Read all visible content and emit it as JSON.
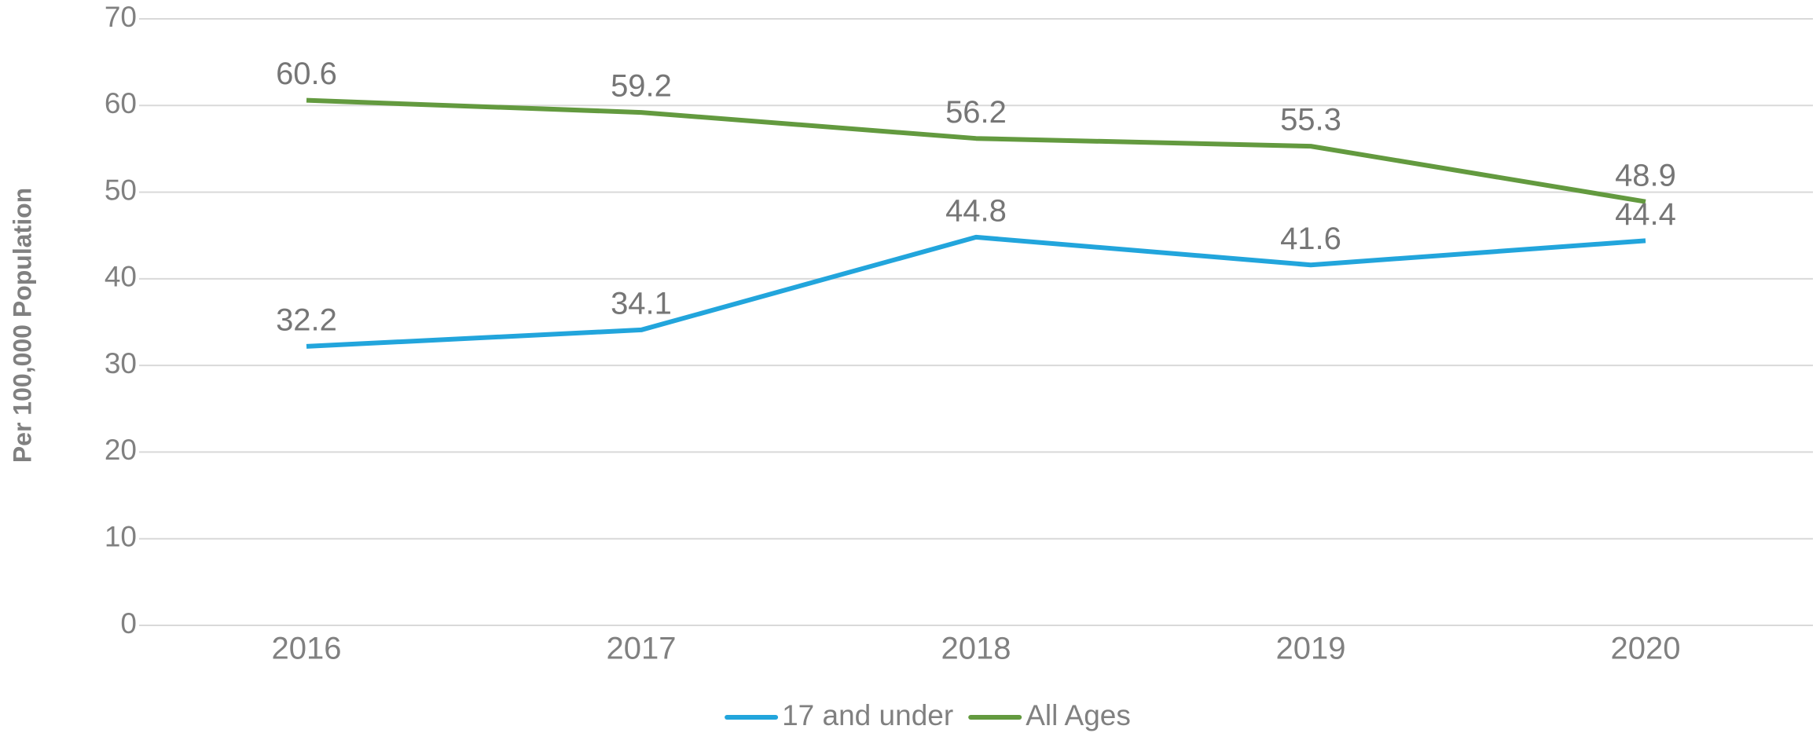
{
  "chart_data": {
    "type": "line",
    "ylabel": "Per 100,000 Population",
    "categories": [
      "2016",
      "2017",
      "2018",
      "2019",
      "2020"
    ],
    "series": [
      {
        "name": "17 and under",
        "color": "#22a5dc",
        "values": [
          32.2,
          34.1,
          44.8,
          41.6,
          44.4
        ]
      },
      {
        "name": "All Ages",
        "color": "#639a3f",
        "values": [
          60.6,
          59.2,
          56.2,
          55.3,
          48.9
        ]
      }
    ],
    "ylim": [
      0,
      70
    ],
    "yticks": [
      0,
      10,
      20,
      30,
      40,
      50,
      60,
      70
    ],
    "grid": true,
    "legend": "bottom"
  }
}
